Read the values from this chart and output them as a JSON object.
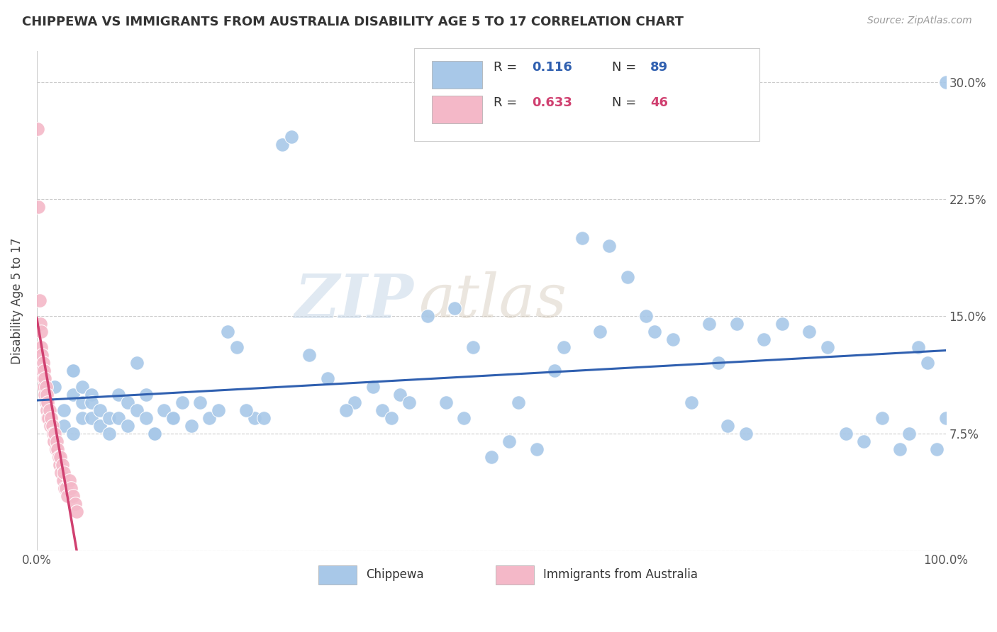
{
  "title": "CHIPPEWA VS IMMIGRANTS FROM AUSTRALIA DISABILITY AGE 5 TO 17 CORRELATION CHART",
  "source": "Source: ZipAtlas.com",
  "ylabel": "Disability Age 5 to 17",
  "xlim": [
    0.0,
    1.0
  ],
  "ylim": [
    0.0,
    0.32
  ],
  "yticks": [
    0.0,
    0.075,
    0.15,
    0.225,
    0.3
  ],
  "yticklabels": [
    "",
    "7.5%",
    "15.0%",
    "22.5%",
    "30.0%"
  ],
  "chippewa_R": "0.116",
  "chippewa_N": "89",
  "australia_R": "0.633",
  "australia_N": "46",
  "chippewa_color": "#a8c8e8",
  "australia_color": "#f4b8c8",
  "chippewa_line_color": "#3060b0",
  "australia_line_color": "#d04070",
  "australia_dash_color": "#e090a8",
  "watermark_zip": "ZIP",
  "watermark_atlas": "atlas",
  "chippewa_x": [
    0.02,
    0.03,
    0.03,
    0.04,
    0.04,
    0.05,
    0.05,
    0.05,
    0.06,
    0.06,
    0.06,
    0.07,
    0.07,
    0.08,
    0.08,
    0.09,
    0.09,
    0.1,
    0.1,
    0.11,
    0.11,
    0.12,
    0.13,
    0.14,
    0.15,
    0.16,
    0.17,
    0.18,
    0.19,
    0.2,
    0.22,
    0.24,
    0.27,
    0.28,
    0.3,
    0.32,
    0.35,
    0.37,
    0.4,
    0.43,
    0.45,
    0.47,
    0.5,
    0.52,
    0.55,
    0.57,
    0.6,
    0.62,
    0.63,
    0.65,
    0.67,
    0.68,
    0.7,
    0.72,
    0.74,
    0.75,
    0.76,
    0.77,
    0.78,
    0.8,
    0.82,
    0.85,
    0.87,
    0.89,
    0.91,
    0.93,
    0.95,
    0.96,
    0.97,
    0.98,
    0.99,
    1.0,
    1.0,
    0.46,
    0.58,
    0.38,
    0.39,
    0.41,
    0.48,
    0.53,
    0.25,
    0.34,
    0.21,
    0.23,
    0.13,
    0.12,
    0.15,
    0.04,
    0.04
  ],
  "chippewa_y": [
    0.105,
    0.09,
    0.08,
    0.115,
    0.1,
    0.105,
    0.095,
    0.085,
    0.1,
    0.095,
    0.085,
    0.09,
    0.08,
    0.085,
    0.075,
    0.1,
    0.085,
    0.095,
    0.08,
    0.12,
    0.09,
    0.1,
    0.075,
    0.09,
    0.085,
    0.095,
    0.08,
    0.095,
    0.085,
    0.09,
    0.13,
    0.085,
    0.26,
    0.265,
    0.125,
    0.11,
    0.095,
    0.105,
    0.1,
    0.15,
    0.095,
    0.085,
    0.06,
    0.07,
    0.065,
    0.115,
    0.2,
    0.14,
    0.195,
    0.175,
    0.15,
    0.14,
    0.135,
    0.095,
    0.145,
    0.12,
    0.08,
    0.145,
    0.075,
    0.135,
    0.145,
    0.14,
    0.13,
    0.075,
    0.07,
    0.085,
    0.065,
    0.075,
    0.13,
    0.12,
    0.065,
    0.3,
    0.085,
    0.155,
    0.13,
    0.09,
    0.085,
    0.095,
    0.13,
    0.095,
    0.085,
    0.09,
    0.14,
    0.09,
    0.075,
    0.085,
    0.085,
    0.075,
    0.115
  ],
  "australia_x": [
    0.002,
    0.003,
    0.004,
    0.005,
    0.005,
    0.006,
    0.006,
    0.007,
    0.007,
    0.008,
    0.008,
    0.009,
    0.009,
    0.01,
    0.01,
    0.011,
    0.011,
    0.012,
    0.012,
    0.013,
    0.014,
    0.015,
    0.016,
    0.017,
    0.018,
    0.019,
    0.02,
    0.021,
    0.022,
    0.023,
    0.024,
    0.025,
    0.026,
    0.027,
    0.028,
    0.029,
    0.03,
    0.031,
    0.032,
    0.034,
    0.036,
    0.038,
    0.04,
    0.042,
    0.044,
    0.001
  ],
  "australia_y": [
    0.22,
    0.16,
    0.145,
    0.14,
    0.13,
    0.125,
    0.115,
    0.12,
    0.11,
    0.115,
    0.105,
    0.11,
    0.1,
    0.105,
    0.095,
    0.1,
    0.09,
    0.095,
    0.085,
    0.085,
    0.09,
    0.08,
    0.085,
    0.08,
    0.075,
    0.07,
    0.075,
    0.065,
    0.07,
    0.065,
    0.06,
    0.055,
    0.06,
    0.05,
    0.055,
    0.045,
    0.05,
    0.04,
    0.04,
    0.035,
    0.045,
    0.04,
    0.035,
    0.03,
    0.025,
    0.27
  ]
}
